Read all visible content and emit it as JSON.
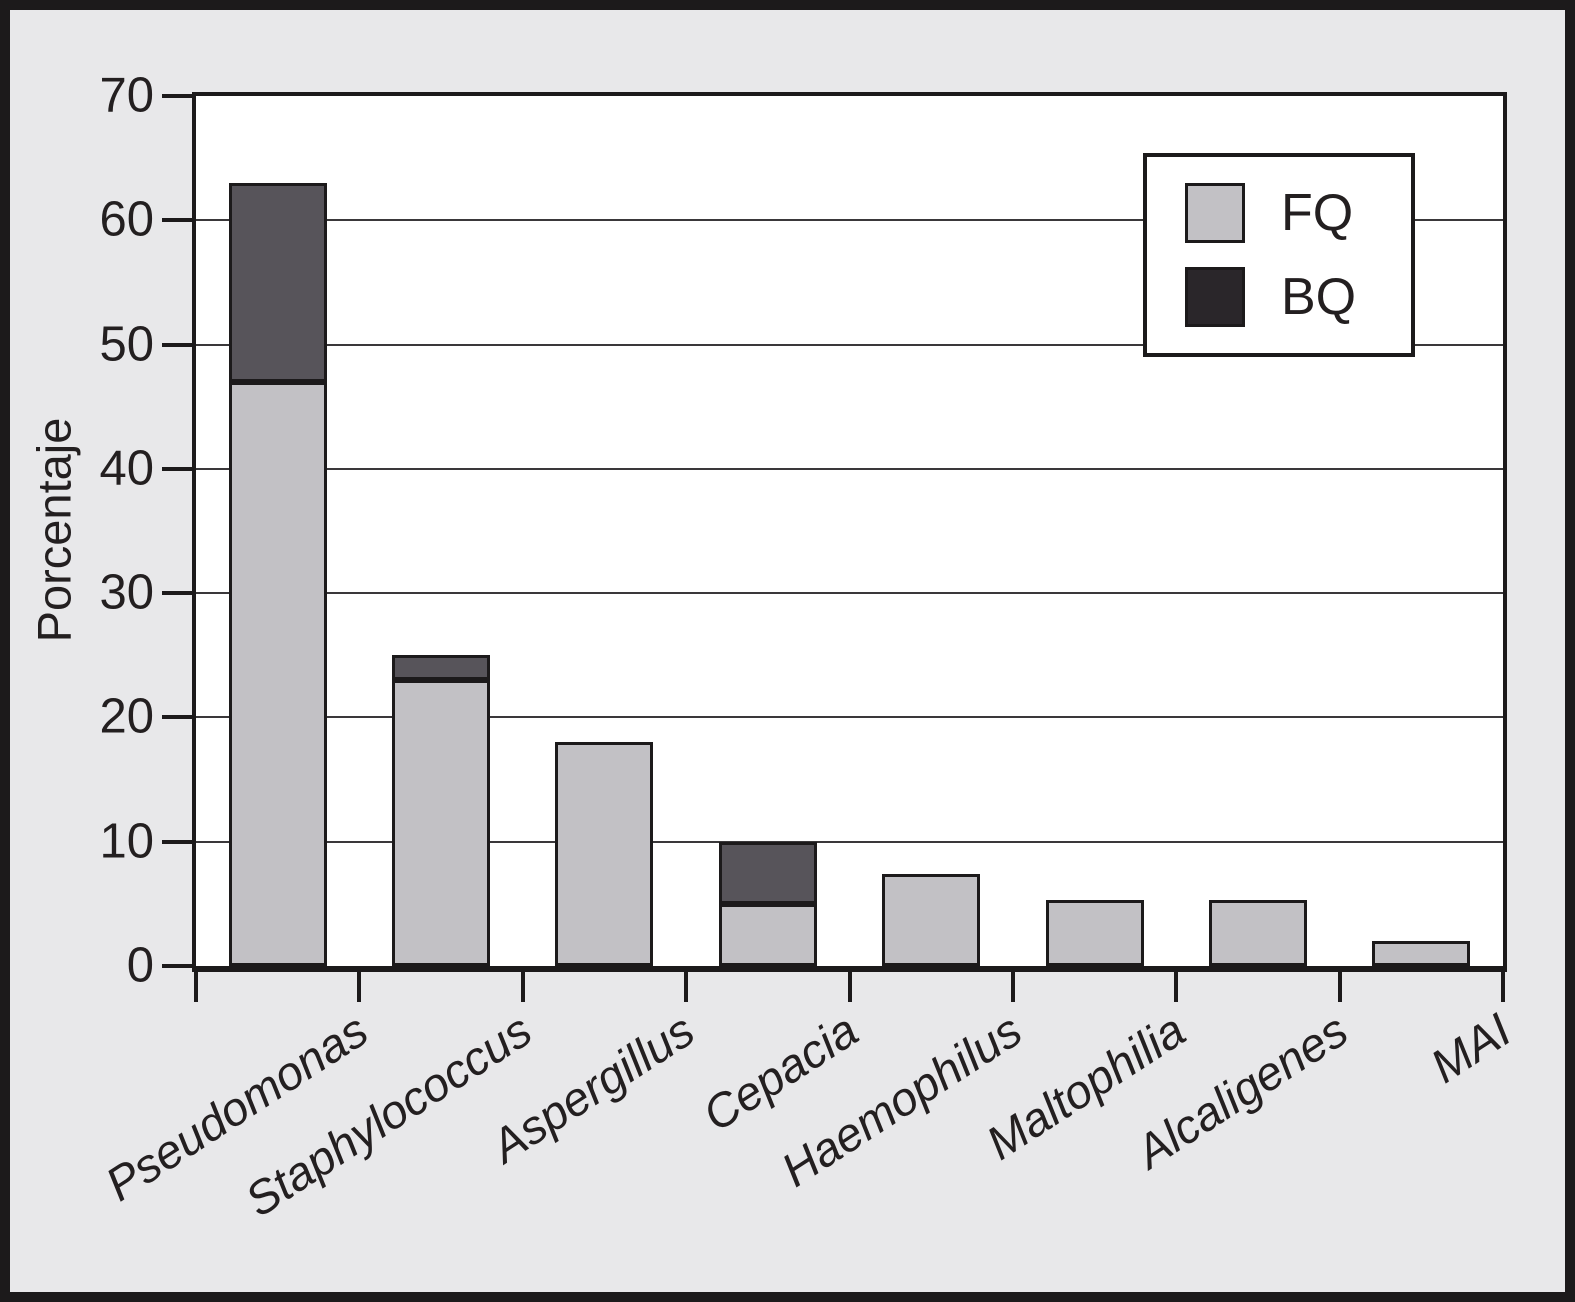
{
  "figure": {
    "background": "#e8e8ea",
    "plot_background": "#ffffff",
    "frame_color": "#1c1a1b",
    "gridline_color": "#3a383a"
  },
  "chart_data": {
    "type": "bar",
    "stacked": true,
    "title": "",
    "xlabel": "",
    "ylabel": "Porcentaje",
    "ylim": [
      0,
      70
    ],
    "yticks": [
      0,
      10,
      20,
      30,
      40,
      50,
      60,
      70
    ],
    "grid": true,
    "categories": [
      "Pseudomonas",
      "Staphylococcus",
      "Aspergillus",
      "Cepacia",
      "Haemophilus",
      "Maltophilia",
      "Alcaligenes",
      "MAI"
    ],
    "series": [
      {
        "name": "FQ",
        "color": "#c2c1c5",
        "legend_color": "#c2c1c5",
        "values": [
          47,
          23,
          18,
          5,
          7.4,
          5.3,
          5.3,
          2
        ]
      },
      {
        "name": "BQ",
        "color": "#57545a",
        "legend_color": "#2a262a",
        "values": [
          16,
          2,
          0,
          5,
          0,
          0,
          0,
          0
        ]
      }
    ],
    "legend": {
      "position": "top-right"
    }
  }
}
